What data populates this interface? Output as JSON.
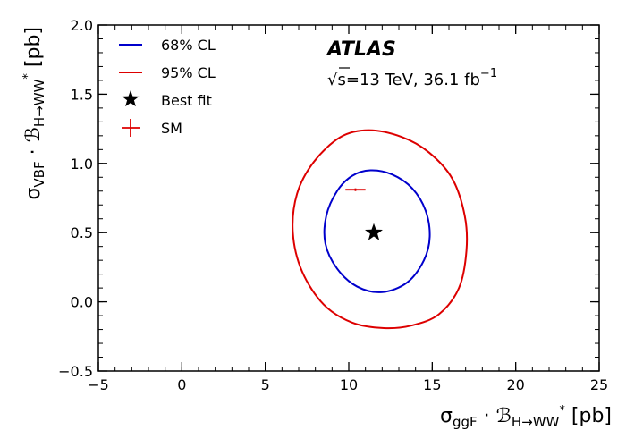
{
  "chart_data": {
    "type": "scatter",
    "title": "",
    "xlabel": {
      "main": "σ",
      "sub": "ggF",
      "mid": " · ",
      "script": "ℬ",
      "script_sub": "H→WW",
      "script_sup": "*",
      "unit": " [pb]"
    },
    "ylabel": {
      "main": "σ",
      "sub": "VBF",
      "mid": " · ",
      "script": "ℬ",
      "script_sub": "H→WW",
      "script_sup": "*",
      "unit": " [pb]"
    },
    "xlim": [
      -5,
      25
    ],
    "ylim": [
      -0.5,
      2.0
    ],
    "x_ticks": [
      -5,
      0,
      5,
      10,
      15,
      20,
      25
    ],
    "x_tick_labels": [
      "−5",
      "0",
      "5",
      "10",
      "15",
      "20",
      "25"
    ],
    "y_ticks": [
      -0.5,
      0.0,
      0.5,
      1.0,
      1.5,
      2.0
    ],
    "y_tick_labels": [
      "−0.5",
      "0.0",
      "0.5",
      "1.0",
      "1.5",
      "2.0"
    ],
    "x_minor_step": 1,
    "y_minor_step": 0.1,
    "series": [
      {
        "name": "68% CL",
        "kind": "contour",
        "color": "#0000cc",
        "points": [
          [
            11.3,
            0.95
          ],
          [
            12.6,
            0.92
          ],
          [
            13.8,
            0.82
          ],
          [
            14.6,
            0.66
          ],
          [
            14.85,
            0.47
          ],
          [
            14.5,
            0.3
          ],
          [
            13.5,
            0.14
          ],
          [
            12.0,
            0.07
          ],
          [
            10.5,
            0.11
          ],
          [
            9.3,
            0.24
          ],
          [
            8.6,
            0.42
          ],
          [
            8.65,
            0.62
          ],
          [
            9.3,
            0.8
          ],
          [
            10.2,
            0.91
          ]
        ]
      },
      {
        "name": "95% CL",
        "kind": "contour",
        "color": "#dd0000",
        "points": [
          [
            11.2,
            1.24
          ],
          [
            13.2,
            1.19
          ],
          [
            14.8,
            1.08
          ],
          [
            16.2,
            0.89
          ],
          [
            16.95,
            0.62
          ],
          [
            17.05,
            0.37
          ],
          [
            16.6,
            0.1
          ],
          [
            15.4,
            -0.09
          ],
          [
            13.8,
            -0.17
          ],
          [
            12.1,
            -0.19
          ],
          [
            10.2,
            -0.15
          ],
          [
            8.5,
            -0.02
          ],
          [
            7.2,
            0.22
          ],
          [
            6.65,
            0.5
          ],
          [
            6.9,
            0.78
          ],
          [
            7.9,
            1.01
          ],
          [
            9.5,
            1.19
          ]
        ]
      },
      {
        "name": "Best fit",
        "kind": "marker",
        "marker": "star",
        "color": "#000000",
        "x": 11.5,
        "y": 0.5
      },
      {
        "name": "SM",
        "kind": "marker",
        "marker": "cross",
        "color": "#dd0000",
        "x": 10.4,
        "y": 0.81,
        "x_err": 0.6,
        "y_err": 0.01
      }
    ],
    "legend": {
      "position": "top-left",
      "entries": [
        {
          "label": "68% CL",
          "color": "#0000cc",
          "symbol": "line"
        },
        {
          "label": "95% CL",
          "color": "#dd0000",
          "symbol": "line"
        },
        {
          "label": "Best fit",
          "color": "#000000",
          "symbol": "star"
        },
        {
          "label": "SM",
          "color": "#dd0000",
          "symbol": "cross"
        }
      ]
    },
    "annotations": {
      "experiment": "ATLAS",
      "sqrt_symbol": "√",
      "s_symbol": "s",
      "energy_text": "=13 TeV, 36.1 fb",
      "energy_sup": "−1"
    }
  }
}
